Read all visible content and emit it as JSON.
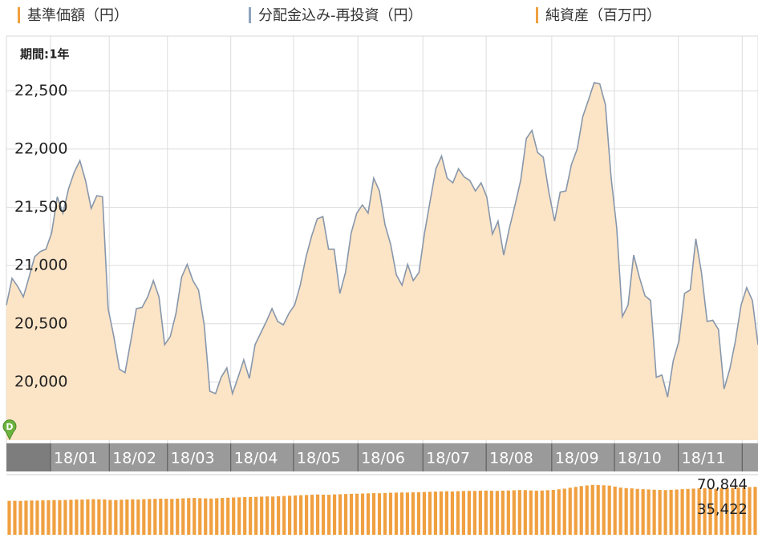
{
  "legend": [
    {
      "name": "基準価額（円）",
      "color": "#f0a040"
    },
    {
      "name": "分配金込み-再投資（円）",
      "color": "#8fa4bd"
    },
    {
      "name": "純資産（百万円）",
      "color": "#f0a040"
    }
  ],
  "chart_data": [
    {
      "type": "area",
      "subtitle": "期間:1年",
      "marker_label": "D",
      "grid": true,
      "xlim": [
        0,
        133
      ],
      "xticks": [
        {
          "value": 7.8,
          "label": "18/01"
        },
        {
          "value": 18.2,
          "label": "18/02"
        },
        {
          "value": 28.5,
          "label": "18/03"
        },
        {
          "value": 39.7,
          "label": "18/04"
        },
        {
          "value": 50.8,
          "label": "18/05"
        },
        {
          "value": 62.2,
          "label": "18/06"
        },
        {
          "value": 73.7,
          "label": "18/07"
        },
        {
          "value": 84.9,
          "label": "18/08"
        },
        {
          "value": 96.5,
          "label": "18/09"
        },
        {
          "value": 107.6,
          "label": "18/10"
        },
        {
          "value": 118.9,
          "label": "18/11"
        },
        {
          "value": 130.2,
          "label": ""
        }
      ],
      "ylim": [
        19500,
        22970
      ],
      "yticks": [
        {
          "value": 20000,
          "label": "20,000"
        },
        {
          "value": 20500,
          "label": "20,500"
        },
        {
          "value": 21000,
          "label": "21,000"
        },
        {
          "value": 21500,
          "label": "21,500"
        },
        {
          "value": 22000,
          "label": "22,000"
        },
        {
          "value": 22500,
          "label": "22,500"
        }
      ],
      "series": [
        {
          "color": "#8797ab",
          "fill": "#fce4c6",
          "values": [
            20660,
            20890,
            20820,
            20730,
            20900,
            21075,
            21120,
            21140,
            21280,
            21590,
            21450,
            21660,
            21800,
            21900,
            21730,
            21490,
            21600,
            21590,
            20630,
            20390,
            20110,
            20080,
            20350,
            20630,
            20640,
            20730,
            20870,
            20730,
            20320,
            20390,
            20590,
            20900,
            21010,
            20870,
            20790,
            20490,
            19920,
            19900,
            20040,
            20120,
            19900,
            20040,
            20190,
            20030,
            20320,
            20420,
            20520,
            20630,
            20520,
            20490,
            20590,
            20660,
            20830,
            21070,
            21250,
            21400,
            21420,
            21140,
            21140,
            20760,
            20940,
            21280,
            21450,
            21520,
            21450,
            21750,
            21640,
            21350,
            21180,
            20920,
            20830,
            21010,
            20870,
            20940,
            21280,
            21560,
            21830,
            21940,
            21750,
            21710,
            21830,
            21760,
            21730,
            21640,
            21710,
            21590,
            21270,
            21380,
            21090,
            21320,
            21520,
            21730,
            22090,
            22160,
            21970,
            21930,
            21630,
            21380,
            21630,
            21640,
            21870,
            22000,
            22280,
            22420,
            22570,
            22560,
            22380,
            21760,
            21320,
            20560,
            20660,
            21090,
            20900,
            20740,
            20700,
            20040,
            20060,
            19870,
            20180,
            20350,
            20760,
            20790,
            21230,
            20940,
            20520,
            20530,
            20450,
            19940,
            20110,
            20350,
            20660,
            20810,
            20700,
            20320
          ]
        }
      ]
    },
    {
      "type": "bar",
      "color": "#f0a040",
      "ylim": [
        0,
        82000
      ],
      "yticks": [
        {
          "value": 35422,
          "label": "35,422"
        },
        {
          "value": 70844,
          "label": "70,844"
        }
      ],
      "values": [
        48200,
        48300,
        48100,
        48500,
        48700,
        48600,
        48900,
        49100,
        49300,
        49200,
        49500,
        49800,
        50100,
        50000,
        50300,
        50600,
        50400,
        50200,
        49500,
        49300,
        49800,
        50100,
        50400,
        50200,
        50600,
        50900,
        51100,
        51300,
        51200,
        51000,
        51400,
        51800,
        52100,
        52300,
        52000,
        51700,
        51500,
        51900,
        52300,
        52600,
        53000,
        53200,
        53500,
        53700,
        53900,
        54200,
        54500,
        54300,
        54700,
        55100,
        55400,
        55800,
        56200,
        56500,
        56900,
        57200,
        57000,
        56800,
        57300,
        57600,
        57900,
        58200,
        58400,
        58600,
        58900,
        59200,
        59000,
        59400,
        59700,
        59900,
        60100,
        60000,
        60300,
        60500,
        60800,
        61100,
        61300,
        61600,
        61800,
        61500,
        61900,
        62200,
        62400,
        62300,
        62600,
        62800,
        62500,
        62300,
        62700,
        62900,
        63200,
        63600,
        63400,
        63000,
        62600,
        62900,
        63300,
        63800,
        64600,
        65500,
        66800,
        68000,
        69200,
        70100,
        70844,
        70600,
        70300,
        69800,
        68500,
        67000,
        66300,
        65900,
        65200,
        64800,
        64400,
        64000,
        63700,
        63500,
        63900,
        64300,
        64800,
        65200,
        65600,
        65900,
        66100,
        65800,
        65500,
        65900,
        66300,
        66700,
        67000,
        67400,
        67800,
        68100
      ]
    }
  ]
}
